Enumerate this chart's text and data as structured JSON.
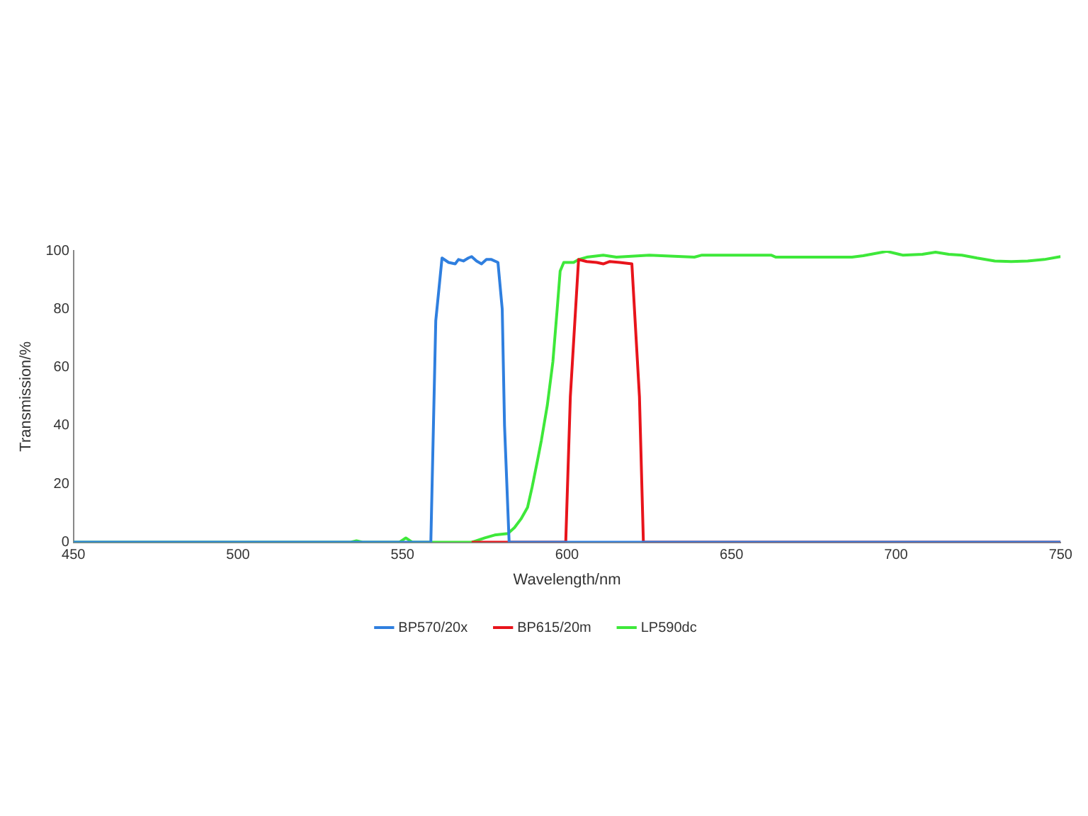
{
  "chart_data": {
    "type": "line",
    "xlabel": "Wavelength/nm",
    "ylabel": "Transmission/%",
    "xlim": [
      450,
      750
    ],
    "xticks": [
      450,
      500,
      550,
      600,
      650,
      700,
      750
    ],
    "ylim": [
      0,
      100
    ],
    "yticks": [
      0,
      20,
      40,
      60,
      80,
      100
    ],
    "grid": false,
    "legend": "bottom",
    "marker": "none",
    "line_style": "solid",
    "series": [
      {
        "name": "BP570/20x",
        "color": "#2f7fdf",
        "x": [
          450,
          558.6,
          560.1,
          562,
          564,
          566,
          567,
          568.5,
          570,
          571,
          572.5,
          574,
          575.5,
          577,
          579,
          580.3,
          581,
          582.4,
          750
        ],
        "values": [
          0,
          0,
          76,
          97.5,
          96,
          95.5,
          97,
          96.5,
          97.5,
          98,
          96.5,
          95.5,
          97,
          97,
          96,
          80,
          40,
          0,
          0
        ]
      },
      {
        "name": "BP615/20m",
        "color": "#e8141b",
        "x": [
          571,
          599.6,
          601,
          603.5,
          606,
          609,
          611,
          613,
          616,
          619.7,
          622,
          623.2,
          750
        ],
        "values": [
          0,
          0,
          50,
          97,
          96.3,
          96,
          95.5,
          96.3,
          96,
          95.5,
          50,
          0,
          0
        ]
      },
      {
        "name": "LP590dc",
        "color": "#3ee83a",
        "x": [
          450,
          534,
          536,
          538,
          549,
          551,
          553,
          571,
          575,
          578,
          582,
          584,
          586,
          588,
          589.4,
          591,
          592.2,
          594,
          595.7,
          597,
          597.9,
          599,
          602,
          603.5,
          606,
          611,
          615,
          625,
          638.7,
          641,
          662,
          663.5,
          686.6,
          690,
          697.2,
          702,
          708,
          712,
          716,
          720,
          724.6,
          730,
          735,
          740,
          745,
          750
        ],
        "values": [
          0,
          0,
          0.5,
          0,
          0,
          1.5,
          0,
          0,
          1.5,
          2.5,
          3,
          5,
          8,
          12,
          19,
          28,
          35,
          47,
          62,
          80,
          93,
          96,
          96,
          97,
          97.8,
          98.5,
          97.8,
          98.5,
          97.8,
          98.5,
          98.5,
          97.8,
          97.8,
          98.3,
          99.8,
          98.5,
          98.8,
          99.5,
          98.8,
          98.5,
          97.5,
          96.5,
          96.3,
          96.5,
          97,
          98
        ]
      }
    ]
  }
}
